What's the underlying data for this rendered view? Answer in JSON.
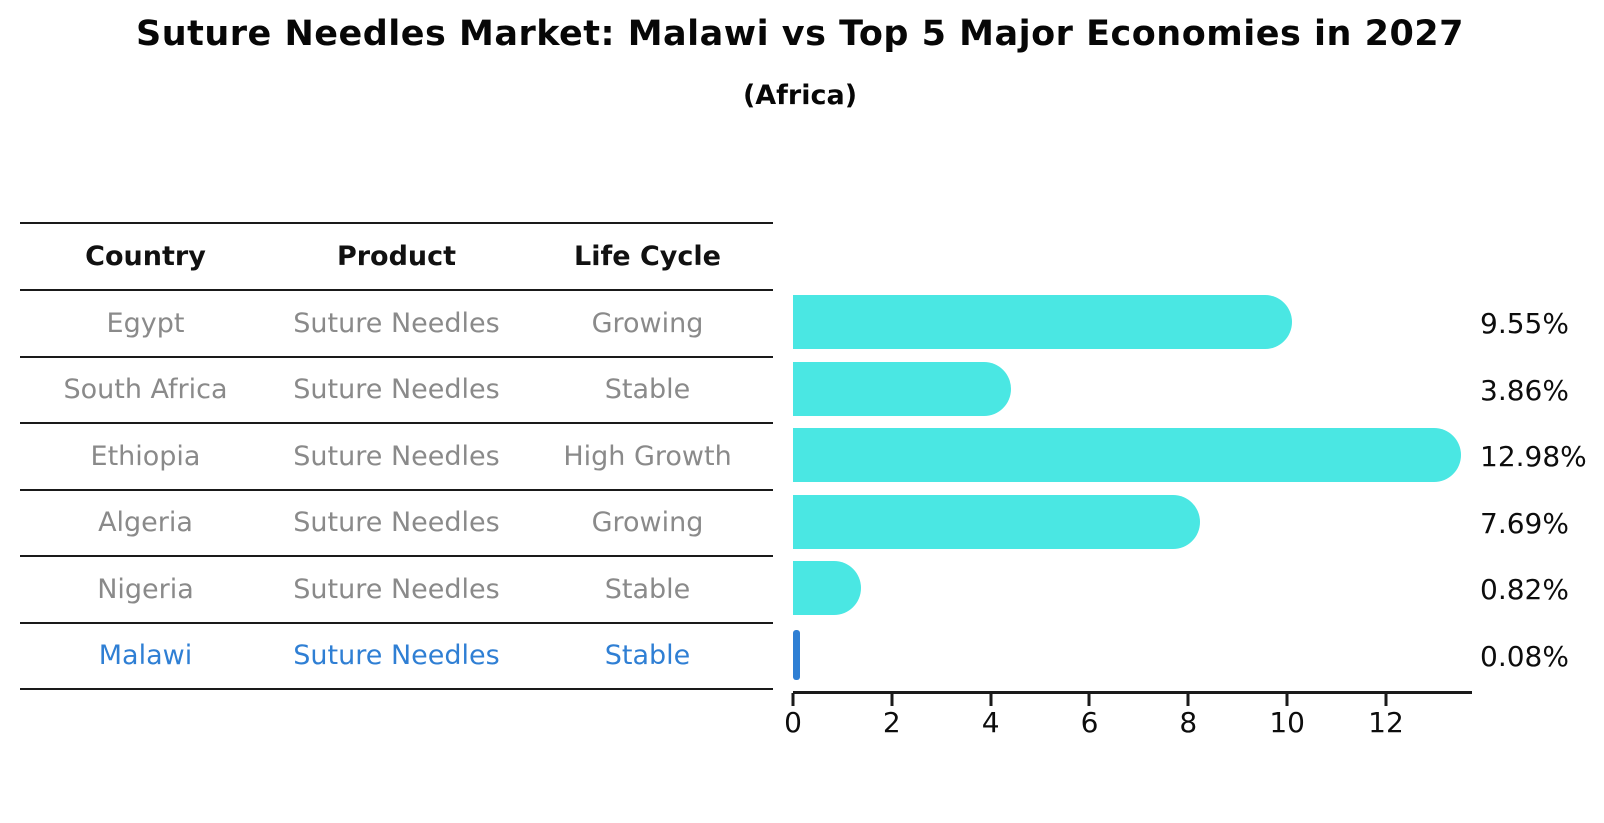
{
  "title": "Suture Needles Market: Malawi vs Top 5 Major Economies in 2027",
  "subtitle": "(Africa)",
  "table": {
    "headers": {
      "country": "Country",
      "product": "Product",
      "life_cycle": "Life Cycle"
    },
    "rows": [
      {
        "country": "Egypt",
        "product": "Suture Needles",
        "life_cycle": "Growing",
        "highlight": false
      },
      {
        "country": "South Africa",
        "product": "Suture Needles",
        "life_cycle": "Stable",
        "highlight": false
      },
      {
        "country": "Ethiopia",
        "product": "Suture Needles",
        "life_cycle": "High Growth",
        "highlight": false
      },
      {
        "country": "Algeria",
        "product": "Suture Needles",
        "life_cycle": "Growing",
        "highlight": false
      },
      {
        "country": "Nigeria",
        "product": "Suture Needles",
        "life_cycle": "Stable",
        "highlight": false
      },
      {
        "country": "Malawi",
        "product": "Suture Needles",
        "life_cycle": "Stable",
        "highlight": true
      }
    ]
  },
  "chart_data": {
    "type": "bar",
    "orientation": "horizontal",
    "title": "Suture Needles Market: Malawi vs Top 5 Major Economies in 2027",
    "subtitle": "(Africa)",
    "categories": [
      "Egypt",
      "South Africa",
      "Ethiopia",
      "Algeria",
      "Nigeria",
      "Malawi"
    ],
    "values": [
      9.55,
      3.86,
      12.98,
      7.69,
      0.82,
      0.08
    ],
    "value_labels": [
      "9.55%",
      "3.86%",
      "12.98%",
      "7.69%",
      "0.82%",
      "0.08%"
    ],
    "x_ticks": [
      0,
      2,
      4,
      6,
      8,
      10,
      12
    ],
    "xlim": [
      0,
      13.7
    ],
    "xlabel": "",
    "ylabel": "",
    "grid": false,
    "legend": "none",
    "bar_color": "#4ae7e3",
    "highlight_color": "#2f7fd4",
    "highlight_index": 5,
    "axis_color": "#1a1a1a",
    "label_color": "#0d0d0d"
  }
}
